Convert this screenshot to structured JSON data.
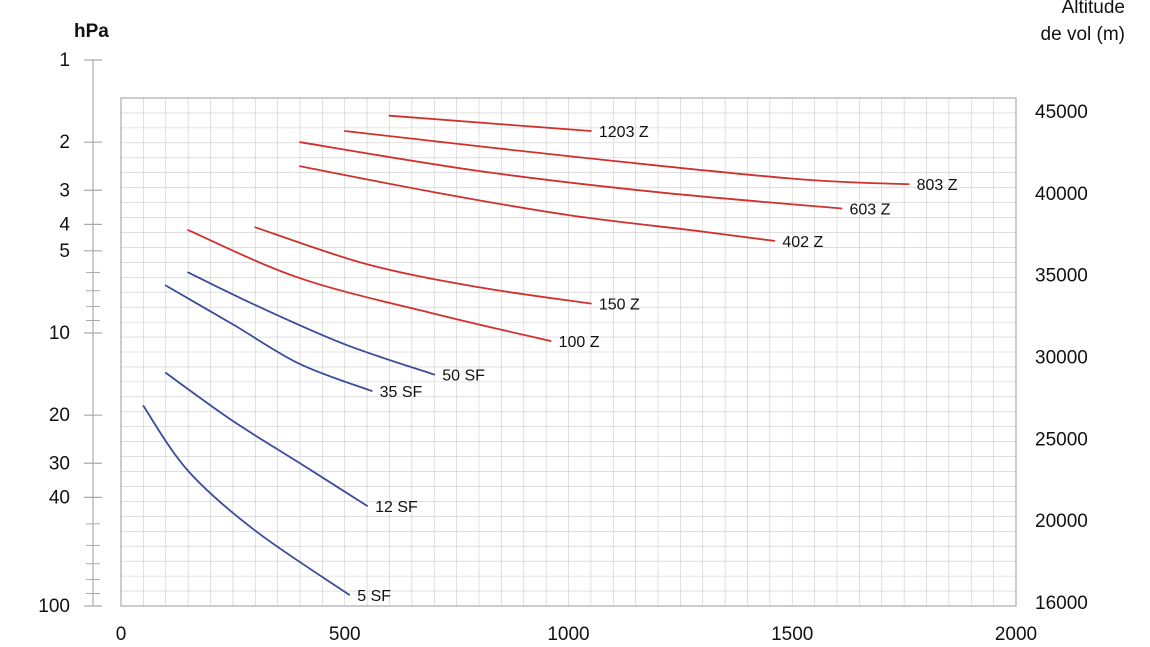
{
  "chart_data": {
    "type": "line",
    "title": "",
    "xlabel": "",
    "ylabel_left": "hPa",
    "ylabel_right": [
      "Altitude",
      "de vol (m)"
    ],
    "xlim": [
      0,
      2000
    ],
    "x_ticks": [
      "0",
      "500",
      "1000",
      "1500",
      "2000"
    ],
    "y_left_scale": "log",
    "y_left_ticks": [
      "1",
      "2",
      "3",
      "4",
      "5",
      "10",
      "20",
      "30",
      "40",
      "100"
    ],
    "y_left_minor_ticks": [
      6,
      7,
      8,
      9,
      50,
      60,
      70,
      80,
      90
    ],
    "y_right_ticks": [
      "45000",
      "40000",
      "35000",
      "30000",
      "25000",
      "20000",
      "16000"
    ],
    "grid": true,
    "colors": {
      "red": "#d0312d",
      "blue": "#3a4d9a",
      "grid": "#cccccc",
      "axis": "#aaaaaa"
    },
    "series": [
      {
        "name": "1203 Z",
        "color": "red",
        "points": [
          [
            600,
            1.6
          ],
          [
            1050,
            1.82
          ]
        ]
      },
      {
        "name": "803 Z",
        "color": "red",
        "points": [
          [
            500,
            1.82
          ],
          [
            1000,
            2.25
          ],
          [
            1500,
            2.72
          ],
          [
            1760,
            2.85
          ]
        ]
      },
      {
        "name": "603 Z",
        "color": "red",
        "points": [
          [
            400,
            2.0
          ],
          [
            800,
            2.55
          ],
          [
            1200,
            3.05
          ],
          [
            1610,
            3.5
          ]
        ]
      },
      {
        "name": "402 Z",
        "color": "red",
        "points": [
          [
            400,
            2.45
          ],
          [
            700,
            3.05
          ],
          [
            1000,
            3.7
          ],
          [
            1300,
            4.25
          ],
          [
            1460,
            4.6
          ]
        ]
      },
      {
        "name": "150 Z",
        "color": "red",
        "points": [
          [
            300,
            4.1
          ],
          [
            550,
            5.6
          ],
          [
            800,
            6.8
          ],
          [
            1050,
            7.8
          ]
        ]
      },
      {
        "name": "100 Z",
        "color": "red",
        "points": [
          [
            150,
            4.2
          ],
          [
            400,
            6.3
          ],
          [
            700,
            8.5
          ],
          [
            960,
            10.7
          ]
        ]
      },
      {
        "name": "50 SF",
        "color": "blue",
        "points": [
          [
            150,
            6.0
          ],
          [
            300,
            7.9
          ],
          [
            500,
            11.0
          ],
          [
            700,
            14.2
          ]
        ]
      },
      {
        "name": "35 SF",
        "color": "blue",
        "points": [
          [
            100,
            6.7
          ],
          [
            250,
            9.3
          ],
          [
            400,
            13.0
          ],
          [
            560,
            16.3
          ]
        ]
      },
      {
        "name": "12 SF",
        "color": "blue",
        "points": [
          [
            100,
            14.0
          ],
          [
            250,
            21.0
          ],
          [
            400,
            30.0
          ],
          [
            550,
            43.0
          ]
        ]
      },
      {
        "name": "5 SF",
        "color": "blue",
        "points": [
          [
            50,
            18.5
          ],
          [
            150,
            32.0
          ],
          [
            300,
            53.0
          ],
          [
            510,
            91.0
          ]
        ]
      }
    ]
  }
}
